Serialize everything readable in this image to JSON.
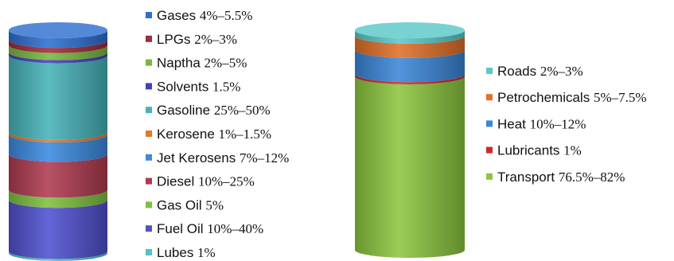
{
  "chart_data": [
    {
      "type": "bar",
      "subtype": "stacked-cylinder",
      "title": "",
      "legend_position": "right",
      "unit": "%",
      "segments_bottom_to_top": [
        {
          "name": "Lubes",
          "range": "1%",
          "color": "#4fc4c4"
        },
        {
          "name": "Fuel Oil",
          "range": "10%~40%",
          "color": "#5050d0"
        },
        {
          "name": "Gas Oil",
          "range": "5%",
          "color": "#7ec040"
        },
        {
          "name": "Diesel",
          "range": "10%~25%",
          "color": "#b03a50"
        },
        {
          "name": "Jet Kerosens",
          "range": "7%~12%",
          "color": "#3a8ae0"
        },
        {
          "name": "Kerosene",
          "range": "1%~1.5%",
          "color": "#e07a30"
        },
        {
          "name": "Gasoline",
          "range": "25%~50%",
          "color": "#46b3b8"
        },
        {
          "name": "Solvents",
          "range": "1.5%",
          "color": "#4040c0"
        },
        {
          "name": "Naptha",
          "range": "2%~5%",
          "color": "#78b840"
        },
        {
          "name": "LPGs",
          "range": "2%~3%",
          "color": "#a02d3a"
        },
        {
          "name": "Gases",
          "range": "4%~5.5%",
          "color": "#2f6fd0"
        }
      ],
      "displayed_values": [
        1,
        25,
        5,
        17.5,
        9.5,
        1.25,
        37.5,
        1.5,
        3.5,
        2.5,
        4.75
      ]
    },
    {
      "type": "bar",
      "subtype": "stacked-cylinder",
      "title": "",
      "legend_position": "right",
      "unit": "%",
      "segments_bottom_to_top": [
        {
          "name": "Transport",
          "range": "76.5%~82%",
          "color": "#8cc63f"
        },
        {
          "name": "Lubricants",
          "range": "1%",
          "color": "#d02828"
        },
        {
          "name": "Heat",
          "range": "10%~12%",
          "color": "#3a86d8"
        },
        {
          "name": "Petrochemicals",
          "range": "5%~7.5%",
          "color": "#e0702a"
        },
        {
          "name": "Roads",
          "range": "2%~3%",
          "color": "#5cc8c8"
        }
      ],
      "displayed_values": [
        79,
        1,
        11,
        6.5,
        2.5
      ]
    }
  ]
}
